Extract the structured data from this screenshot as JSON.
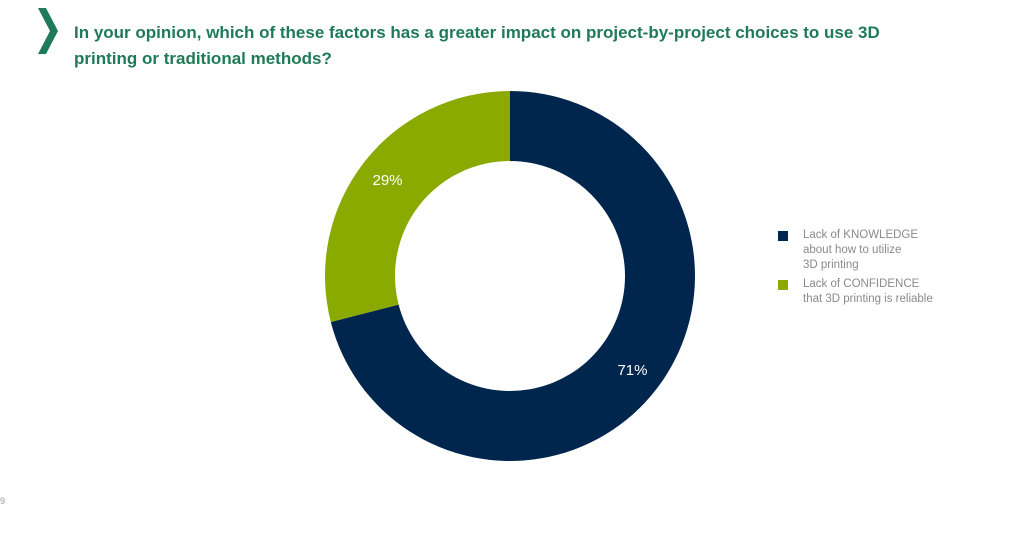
{
  "header": {
    "title": "In your opinion, which of these factors has a greater impact on project-by-project choices to use 3D printing or traditional methods?"
  },
  "colors": {
    "accent": "#1f7a5a",
    "knowledge": "#00264d",
    "confidence": "#8aaa00",
    "data_label": "#ffffff",
    "legend_text": "#8a8a8a"
  },
  "chart_data": {
    "type": "pie",
    "variant": "donut",
    "title": "In your opinion, which of these factors has a greater impact on project-by-project choices to use 3D printing or traditional methods?",
    "categories": [
      "Lack of KNOWLEDGE about how to utilize 3D printing",
      "Lack of CONFIDENCE that 3D printing is reliable"
    ],
    "values": [
      71,
      29
    ],
    "data_labels": [
      "71%",
      "29%"
    ],
    "legend": {
      "placement": "right",
      "entries": [
        "Lack of KNOWLEDGE\nabout how to utilize\n3D printing",
        "Lack of CONFIDENCE\nthat 3D printing is reliable"
      ]
    }
  },
  "footer": {
    "corner_mark": "9"
  }
}
